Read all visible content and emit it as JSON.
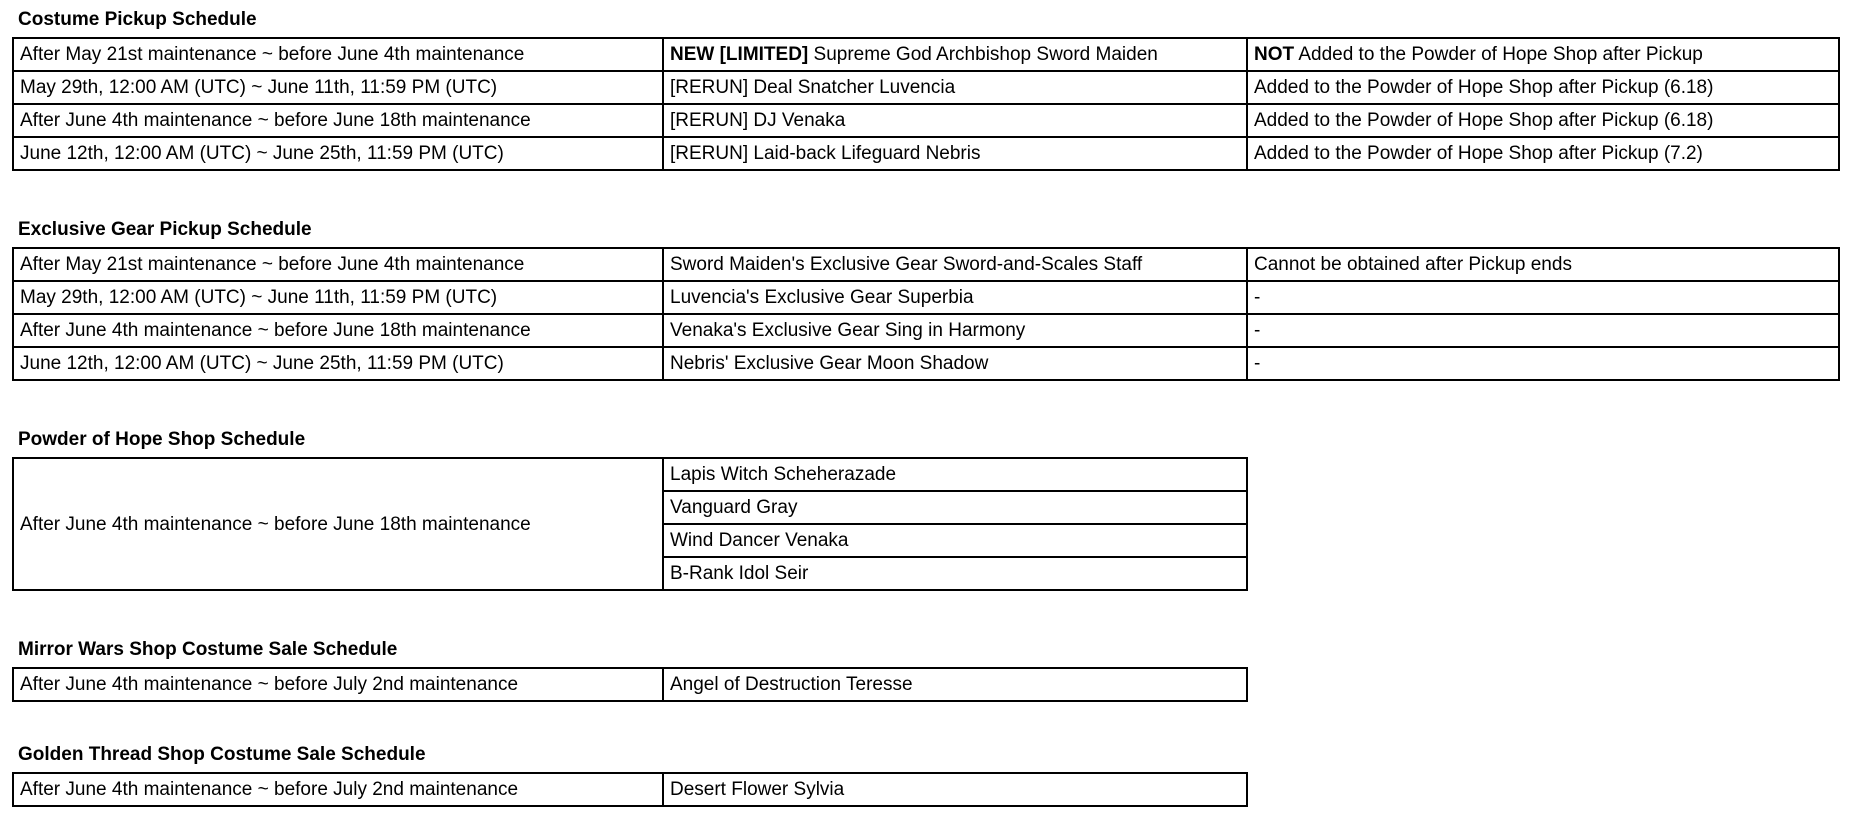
{
  "costume_pickup": {
    "title": "Costume Pickup Schedule",
    "rows": [
      {
        "period": "After May 21st maintenance ~ before June 4th maintenance",
        "item_bold": "NEW [LIMITED]",
        "item": " Supreme God Archbishop Sword Maiden",
        "note_bold": "NOT",
        "note": " Added to the Powder of Hope Shop after Pickup"
      },
      {
        "period": "May 29th, 12:00 AM (UTC) ~ June 11th, 11:59 PM (UTC)",
        "item": "[RERUN] Deal Snatcher Luvencia",
        "note": "Added to the Powder of Hope Shop after Pickup (6.18)"
      },
      {
        "period": "After June 4th maintenance ~ before June 18th maintenance",
        "item": "[RERUN] DJ Venaka",
        "note": "Added to the Powder of Hope Shop after Pickup (6.18)"
      },
      {
        "period": "June 12th, 12:00 AM (UTC) ~ June 25th, 11:59 PM (UTC)",
        "item": "[RERUN] Laid-back Lifeguard Nebris",
        "note": "Added to the Powder of Hope Shop after Pickup (7.2)"
      }
    ]
  },
  "gear_pickup": {
    "title": "Exclusive Gear Pickup Schedule",
    "rows": [
      {
        "period": "After May 21st maintenance ~ before June 4th maintenance",
        "item": "Sword Maiden's Exclusive Gear Sword-and-Scales Staff",
        "note": "Cannot be obtained after Pickup ends"
      },
      {
        "period": "May 29th, 12:00 AM (UTC) ~ June 11th, 11:59 PM (UTC)",
        "item": "Luvencia's Exclusive Gear Superbia",
        "note": "-"
      },
      {
        "period": "After June 4th maintenance ~ before June 18th maintenance",
        "item": "Venaka's Exclusive Gear Sing in Harmony",
        "note": "-"
      },
      {
        "period": "June 12th, 12:00 AM (UTC) ~ June 25th, 11:59 PM (UTC)",
        "item": "Nebris' Exclusive Gear Moon Shadow",
        "note": "-"
      }
    ]
  },
  "hope_shop": {
    "title": "Powder of Hope Shop Schedule",
    "period": "After June 4th maintenance ~ before June 18th maintenance",
    "items": [
      "Lapis Witch Scheherazade",
      "Vanguard Gray",
      "Wind Dancer Venaka",
      "B-Rank Idol Seir"
    ]
  },
  "mirror_wars": {
    "title": "Mirror Wars Shop Costume Sale Schedule",
    "period": "After June 4th maintenance ~ before July 2nd maintenance",
    "item": "Angel of Destruction Teresse"
  },
  "golden_thread": {
    "title": "Golden Thread Shop Costume Sale Schedule",
    "period": "After June 4th maintenance ~ before July 2nd maintenance",
    "item": "Desert Flower Sylvia"
  }
}
